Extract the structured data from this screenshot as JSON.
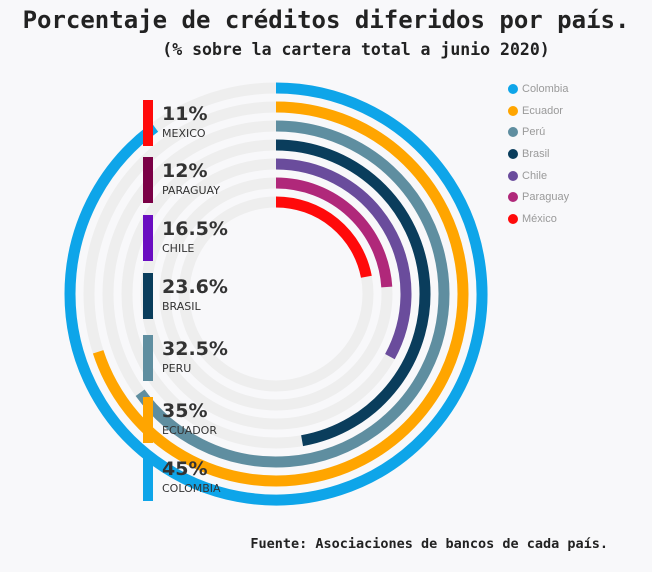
{
  "title": "Porcentaje de créditos diferidos por país.",
  "subtitle": "(% sobre la cartera total a junio 2020)",
  "source": "Fuente: Asociaciones de bancos de cada país.",
  "chart_data": {
    "type": "radial-bar",
    "max_value": 50,
    "series": [
      {
        "name": "Colombia",
        "label": "COLOMBIA",
        "display": "45%",
        "value": 45,
        "color": "#0ea5e9"
      },
      {
        "name": "Ecuador",
        "label": "ECUADOR",
        "display": "35%",
        "value": 35,
        "color": "#ffa500"
      },
      {
        "name": "Perú",
        "label": "PERU",
        "display": "32.5%",
        "value": 32.5,
        "color": "#5f8ea0"
      },
      {
        "name": "Brasil",
        "label": "BRASIL",
        "display": "23.6%",
        "value": 23.6,
        "color": "#0a3d5c"
      },
      {
        "name": "Chile",
        "label": "CHILE",
        "display": "16.5%",
        "value": 16.5,
        "color": "#6a4c9c"
      },
      {
        "name": "Paraguay",
        "label": "PARAGUAY",
        "display": "12%",
        "value": 12,
        "color": "#b0287a"
      },
      {
        "name": "México",
        "label": "MEXICO",
        "display": "11%",
        "value": 11,
        "color": "#ff0a0a"
      }
    ],
    "label_colors": [
      "#0ea5e9",
      "#ffa500",
      "#5f8ea0",
      "#0a3d5c",
      "#6a0dc1",
      "#7a0046",
      "#ff0a0a"
    ],
    "track_color": "#eeeeee"
  }
}
